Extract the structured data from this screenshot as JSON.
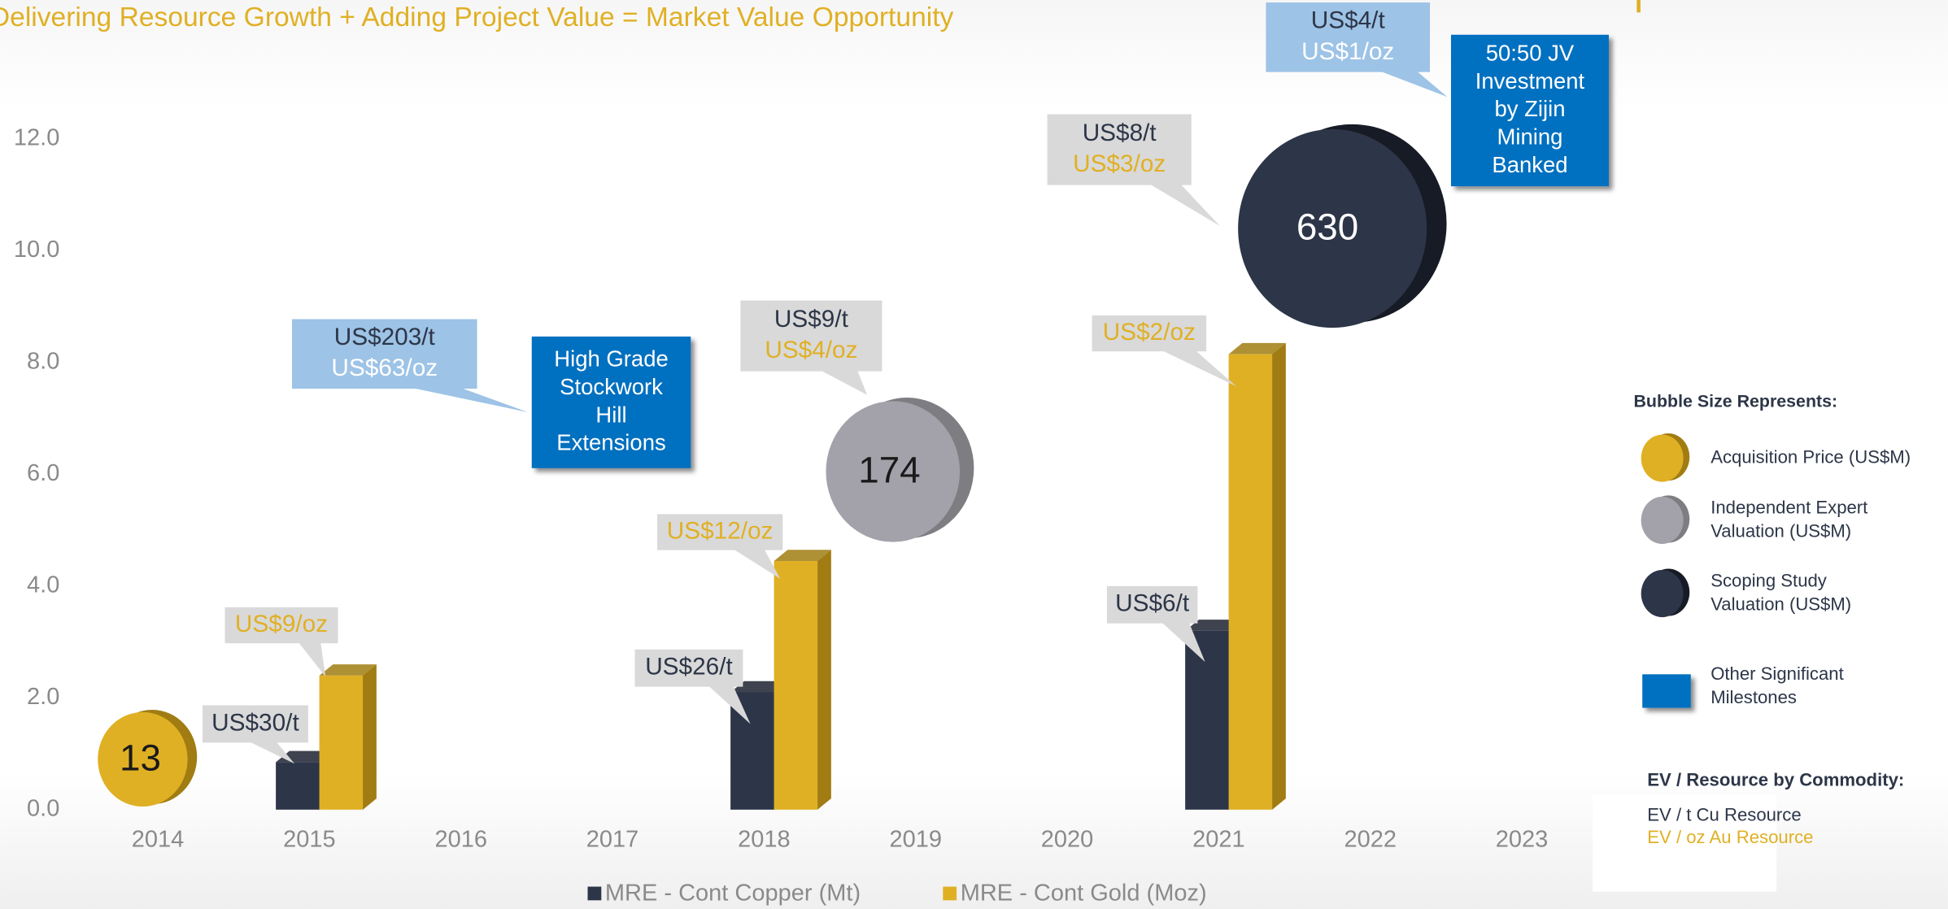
{
  "chart_data": {
    "type": "bar",
    "title": "Delivering Resource Growth + Adding Project Value = Market Value Opportunity",
    "categories": [
      "2014",
      "2015",
      "2016",
      "2017",
      "2018",
      "2019",
      "2020",
      "2021",
      "2022",
      "2023"
    ],
    "xlim": [
      2013.5,
      2023.5
    ],
    "ylim": [
      0,
      12
    ],
    "yticks": [
      {
        "value": 0,
        "label": "0.0"
      },
      {
        "value": 2,
        "label": "2.0"
      },
      {
        "value": 4,
        "label": "4.0"
      },
      {
        "value": 6,
        "label": "6.0"
      },
      {
        "value": 8,
        "label": "8.0"
      },
      {
        "value": 10,
        "label": "10.0"
      },
      {
        "value": 12,
        "label": "12.0"
      }
    ],
    "series": [
      {
        "name": "MRE -  Cont Copper (Mt)",
        "color": "#2d3648",
        "side": "#1c2230",
        "values": [
          null,
          0.85,
          null,
          null,
          2.1,
          null,
          null,
          3.2,
          null,
          null
        ]
      },
      {
        "name": "MRE - Cont Gold (Moz)",
        "color": "#e0b024",
        "side": "#a07c12",
        "values": [
          null,
          2.4,
          null,
          null,
          4.45,
          null,
          null,
          8.15,
          null,
          null
        ]
      }
    ],
    "bubbles": {
      "x": [
        2013.9,
        2018.85,
        2021.75
      ],
      "y": [
        0.9,
        6.05,
        10.4
      ],
      "sizes": [
        13,
        174,
        630
      ],
      "colors": [
        "#e0b024",
        "#a3a2aa",
        "#2d3648"
      ],
      "sides": [
        "#a07c12",
        "#7d7d82",
        "#171b25"
      ],
      "label_colors": [
        "#1a1a1a",
        "#1a1a1a",
        "#ffffff"
      ]
    },
    "callouts": [
      {
        "lines": [
          "US$30/t"
        ],
        "colors": [
          "#2d3648"
        ]
      },
      {
        "lines": [
          "US$9/oz"
        ],
        "colors": [
          "#e0b024"
        ]
      },
      {
        "lines": [
          "US$203/t",
          "US$63/oz"
        ],
        "colors": [
          "#2d3648",
          "#ffffff"
        ]
      },
      {
        "lines": [
          "High Grade",
          "Stockwork",
          "Hill",
          "Extensions"
        ],
        "colors": [
          "#ffffff",
          "#ffffff",
          "#ffffff",
          "#ffffff"
        ]
      },
      {
        "lines": [
          "US$26/t"
        ],
        "colors": [
          "#2d3648"
        ]
      },
      {
        "lines": [
          "US$12/oz"
        ],
        "colors": [
          "#e0b024"
        ]
      },
      {
        "lines": [
          "US$9/t",
          "US$4/oz"
        ],
        "colors": [
          "#2d3648",
          "#e0b024"
        ]
      },
      {
        "lines": [
          "US$2/oz"
        ],
        "colors": [
          "#e0b024"
        ]
      },
      {
        "lines": [
          "US$6/t"
        ],
        "colors": [
          "#2d3648"
        ]
      },
      {
        "lines": [
          "US$8/t",
          "US$3/oz"
        ],
        "colors": [
          "#2d3648",
          "#e0b024"
        ]
      },
      {
        "lines": [
          "US$4/t",
          "US$1/oz"
        ],
        "colors": [
          "#2d3648",
          "#ffffff"
        ]
      },
      {
        "lines": [
          "50:50 JV",
          "Investment",
          "by Zijin",
          "Mining",
          "Banked"
        ],
        "colors": [
          "#ffffff",
          "#ffffff",
          "#ffffff",
          "#ffffff",
          "#ffffff"
        ]
      }
    ],
    "key": {
      "title": "Bubble Size Represents:",
      "items": [
        {
          "label": [
            "Acquisition Price (US$M)"
          ],
          "color": "#e0b024"
        },
        {
          "label": [
            "Independent Expert",
            "Valuation (US$M)"
          ],
          "color": "#a3a2aa"
        },
        {
          "label": [
            "Scoping Study",
            "Valuation (US$M)"
          ],
          "color": "#2d3648"
        },
        {
          "label": [
            "Other Significant",
            "Milestones"
          ],
          "color": "#0070c0"
        }
      ],
      "ev_title": "EV / Resource by Commodity:",
      "ev_lines": [
        {
          "text": "EV / t Cu Resource",
          "color": "#2d3648"
        },
        {
          "text": "EV / oz Au Resource",
          "color": "#e0b024"
        }
      ]
    }
  }
}
